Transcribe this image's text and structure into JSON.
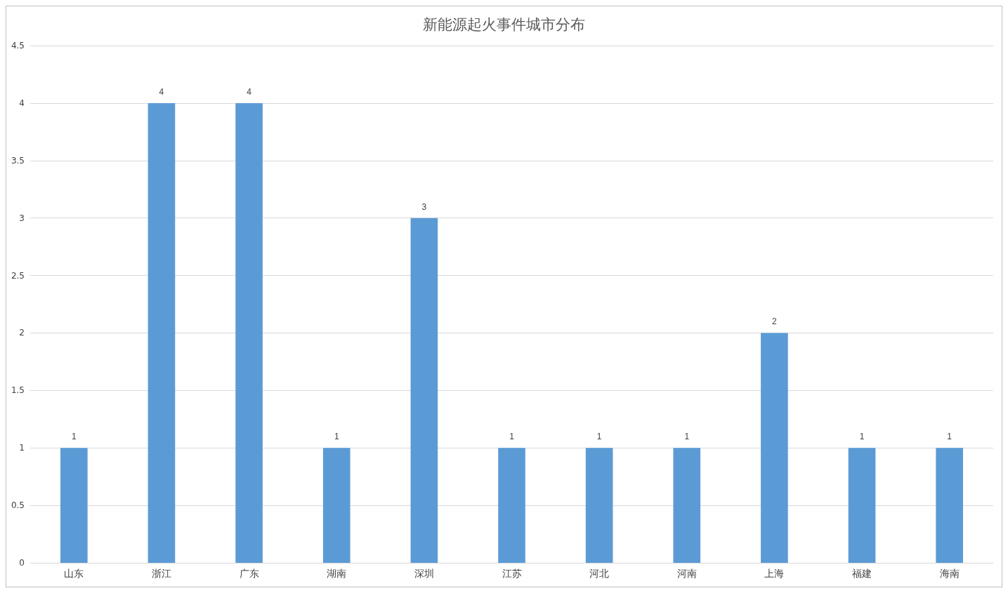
{
  "chart_data": {
    "type": "bar",
    "title": "新能源起火事件城市分布",
    "categories": [
      "山东",
      "浙江",
      "广东",
      "湖南",
      "深圳",
      "江苏",
      "河北",
      "河南",
      "上海",
      "福建",
      "海南"
    ],
    "values": [
      1,
      4,
      4,
      1,
      3,
      1,
      1,
      1,
      2,
      1,
      1
    ],
    "color": "#5b9bd5",
    "ylim": [
      0,
      4.5
    ],
    "yticks": [
      0,
      0.5,
      1,
      1.5,
      2,
      2.5,
      3,
      3.5,
      4,
      4.5
    ],
    "grid": "y",
    "data_labels": true
  }
}
